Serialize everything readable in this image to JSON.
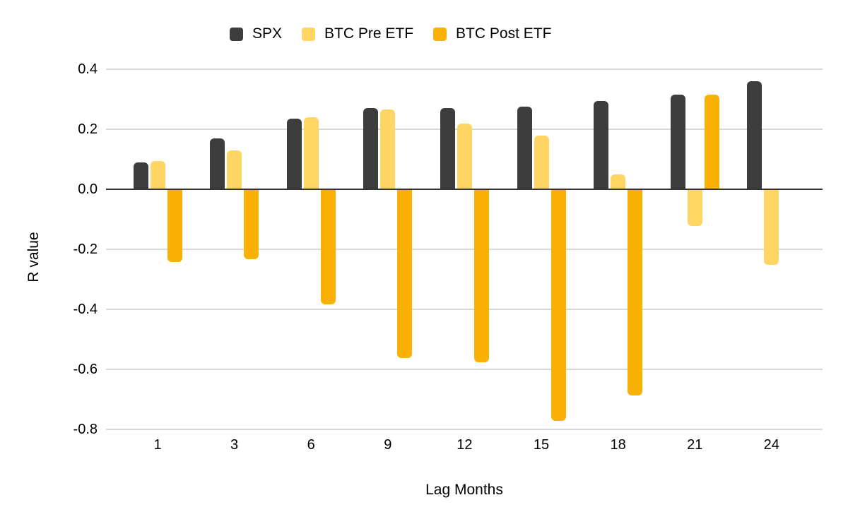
{
  "chart_data": {
    "type": "bar",
    "title": "",
    "xlabel": "Lag Months",
    "ylabel": "R value",
    "categories": [
      "1",
      "3",
      "6",
      "9",
      "12",
      "15",
      "18",
      "21",
      "24"
    ],
    "series": [
      {
        "name": "SPX",
        "color": "#3d3d3d",
        "values": [
          0.09,
          0.17,
          0.235,
          0.27,
          0.27,
          0.275,
          0.295,
          0.315,
          0.36
        ]
      },
      {
        "name": "BTC Pre ETF",
        "color": "#ffd664",
        "values": [
          0.095,
          0.13,
          0.24,
          0.265,
          0.22,
          0.18,
          0.05,
          -0.12,
          -0.25
        ]
      },
      {
        "name": "BTC Post ETF",
        "color": "#f9b105",
        "values": [
          -0.24,
          -0.23,
          -0.38,
          -0.56,
          -0.575,
          -0.77,
          -0.685,
          0.315,
          null
        ]
      }
    ],
    "y_ticks": [
      0.4,
      0.2,
      0.0,
      -0.2,
      -0.4,
      -0.6,
      -0.8
    ],
    "ylim": [
      -0.8,
      0.4
    ],
    "grid": true,
    "legend_position": "top",
    "colors": {
      "gridline": "#d9d9d9",
      "zero_axis": "#333333",
      "text": "#000000",
      "background": "#ffffff"
    }
  }
}
